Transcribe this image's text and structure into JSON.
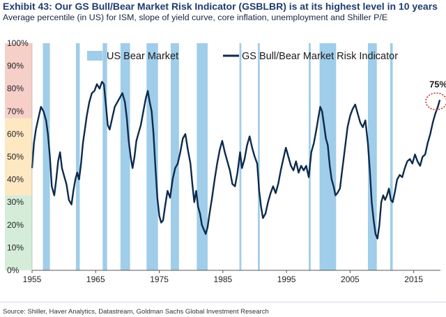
{
  "title": "Exhibit 43: Our GS Bull/Bear Market Risk Indicator (GSBLBR) is at its highest level in 10 years",
  "subtitle": "Average percentile (in US) for ISM, slope of yield curve, core inflation, unemployment and Shiller P/E",
  "source": "Source: Shiller, Haver Analytics, Datastream, Goldman Sachs Global Investment Research",
  "chart_data": {
    "type": "line",
    "title": "Exhibit 43: Our GS Bull/Bear Market Risk Indicator (GSBLBR) is at its highest level in 10 years",
    "subtitle": "Average percentile (in US) for ISM, slope of yield curve, core inflation, unemployment and Shiller P/E",
    "xlabel": "",
    "ylabel": "",
    "xlim": [
      1955,
      2019.2
    ],
    "ylim": [
      0,
      100
    ],
    "x_ticks": [
      "1955",
      "1965",
      "1975",
      "1985",
      "1995",
      "2005",
      "2015"
    ],
    "x_tick_values": [
      1955,
      1965,
      1975,
      1985,
      1995,
      2005,
      2015
    ],
    "y_ticks": [
      "0%",
      "10%",
      "20%",
      "30%",
      "40%",
      "50%",
      "60%",
      "70%",
      "80%",
      "90%",
      "100%"
    ],
    "y_tick_values": [
      0,
      10,
      20,
      30,
      40,
      50,
      60,
      70,
      80,
      90,
      100
    ],
    "grid": false,
    "legend_position": "top",
    "background_bands": [
      {
        "from": 0,
        "to": 33,
        "color": "#d5ecd9"
      },
      {
        "from": 33,
        "to": 67,
        "color": "#fde8c2"
      },
      {
        "from": 67,
        "to": 100,
        "color": "#f6cfc9"
      }
    ],
    "series": [
      {
        "name": "GS Bull/Bear Market Risk Indicator",
        "color": "#0d2a4d",
        "points": [
          [
            1955.0,
            45
          ],
          [
            1955.3,
            56
          ],
          [
            1955.6,
            62
          ],
          [
            1956.0,
            67
          ],
          [
            1956.4,
            72
          ],
          [
            1956.8,
            70
          ],
          [
            1957.2,
            66
          ],
          [
            1957.5,
            60
          ],
          [
            1957.8,
            50
          ],
          [
            1958.1,
            37
          ],
          [
            1958.5,
            33
          ],
          [
            1958.8,
            40
          ],
          [
            1959.1,
            48
          ],
          [
            1959.4,
            52
          ],
          [
            1959.7,
            45
          ],
          [
            1960.0,
            42
          ],
          [
            1960.4,
            38
          ],
          [
            1960.8,
            31
          ],
          [
            1961.2,
            29
          ],
          [
            1961.5,
            35
          ],
          [
            1961.8,
            40
          ],
          [
            1962.1,
            43
          ],
          [
            1962.4,
            40
          ],
          [
            1962.7,
            47
          ],
          [
            1963.0,
            56
          ],
          [
            1963.3,
            62
          ],
          [
            1963.6,
            68
          ],
          [
            1964.0,
            74
          ],
          [
            1964.4,
            78
          ],
          [
            1964.8,
            79
          ],
          [
            1965.2,
            82
          ],
          [
            1965.6,
            80
          ],
          [
            1966.0,
            83
          ],
          [
            1966.3,
            82
          ],
          [
            1966.6,
            73
          ],
          [
            1966.9,
            64
          ],
          [
            1967.2,
            62
          ],
          [
            1967.6,
            67
          ],
          [
            1968.0,
            72
          ],
          [
            1968.4,
            74
          ],
          [
            1968.8,
            76
          ],
          [
            1969.2,
            78
          ],
          [
            1969.6,
            74
          ],
          [
            1969.9,
            67
          ],
          [
            1970.2,
            57
          ],
          [
            1970.5,
            50
          ],
          [
            1970.8,
            45
          ],
          [
            1971.1,
            50
          ],
          [
            1971.4,
            57
          ],
          [
            1971.7,
            60
          ],
          [
            1972.1,
            64
          ],
          [
            1972.5,
            70
          ],
          [
            1972.9,
            76
          ],
          [
            1973.2,
            79
          ],
          [
            1973.5,
            74
          ],
          [
            1973.8,
            70
          ],
          [
            1974.1,
            60
          ],
          [
            1974.4,
            45
          ],
          [
            1974.7,
            32
          ],
          [
            1975.0,
            24
          ],
          [
            1975.3,
            21
          ],
          [
            1975.6,
            22
          ],
          [
            1975.9,
            28
          ],
          [
            1976.3,
            35
          ],
          [
            1976.7,
            32
          ],
          [
            1977.1,
            40
          ],
          [
            1977.5,
            45
          ],
          [
            1977.9,
            47
          ],
          [
            1978.3,
            52
          ],
          [
            1978.7,
            58
          ],
          [
            1979.1,
            60
          ],
          [
            1979.5,
            53
          ],
          [
            1979.9,
            47
          ],
          [
            1980.2,
            38
          ],
          [
            1980.5,
            30
          ],
          [
            1980.8,
            35
          ],
          [
            1981.1,
            28
          ],
          [
            1981.4,
            25
          ],
          [
            1981.7,
            20
          ],
          [
            1982.0,
            18
          ],
          [
            1982.3,
            16
          ],
          [
            1982.6,
            19
          ],
          [
            1982.9,
            25
          ],
          [
            1983.3,
            32
          ],
          [
            1983.7,
            40
          ],
          [
            1984.1,
            47
          ],
          [
            1984.5,
            53
          ],
          [
            1984.9,
            57
          ],
          [
            1985.3,
            52
          ],
          [
            1985.7,
            48
          ],
          [
            1986.1,
            44
          ],
          [
            1986.5,
            38
          ],
          [
            1986.9,
            37
          ],
          [
            1987.3,
            43
          ],
          [
            1987.7,
            52
          ],
          [
            1988.0,
            45
          ],
          [
            1988.4,
            49
          ],
          [
            1988.8,
            55
          ],
          [
            1989.2,
            59
          ],
          [
            1989.6,
            54
          ],
          [
            1990.0,
            50
          ],
          [
            1990.4,
            47
          ],
          [
            1990.7,
            35
          ],
          [
            1991.0,
            28
          ],
          [
            1991.3,
            23
          ],
          [
            1991.7,
            25
          ],
          [
            1992.1,
            30
          ],
          [
            1992.5,
            34
          ],
          [
            1992.9,
            37
          ],
          [
            1993.3,
            34
          ],
          [
            1993.7,
            38
          ],
          [
            1994.1,
            44
          ],
          [
            1994.5,
            49
          ],
          [
            1994.9,
            54
          ],
          [
            1995.3,
            50
          ],
          [
            1995.7,
            46
          ],
          [
            1996.1,
            44
          ],
          [
            1996.5,
            48
          ],
          [
            1996.9,
            43
          ],
          [
            1997.3,
            46
          ],
          [
            1997.7,
            44
          ],
          [
            1998.1,
            46
          ],
          [
            1998.5,
            41
          ],
          [
            1998.9,
            52
          ],
          [
            1999.3,
            56
          ],
          [
            1999.7,
            62
          ],
          [
            2000.0,
            67
          ],
          [
            2000.3,
            72
          ],
          [
            2000.6,
            70
          ],
          [
            2000.9,
            64
          ],
          [
            2001.2,
            58
          ],
          [
            2001.5,
            55
          ],
          [
            2001.8,
            46
          ],
          [
            2002.1,
            40
          ],
          [
            2002.4,
            37
          ],
          [
            2002.7,
            33
          ],
          [
            2003.0,
            34
          ],
          [
            2003.4,
            36
          ],
          [
            2003.8,
            45
          ],
          [
            2004.2,
            54
          ],
          [
            2004.6,
            63
          ],
          [
            2005.0,
            68
          ],
          [
            2005.4,
            71
          ],
          [
            2005.8,
            73
          ],
          [
            2006.2,
            69
          ],
          [
            2006.6,
            65
          ],
          [
            2007.0,
            63
          ],
          [
            2007.4,
            66
          ],
          [
            2007.8,
            56
          ],
          [
            2008.1,
            44
          ],
          [
            2008.4,
            30
          ],
          [
            2008.7,
            22
          ],
          [
            2009.0,
            16
          ],
          [
            2009.3,
            14
          ],
          [
            2009.6,
            20
          ],
          [
            2009.9,
            30
          ],
          [
            2010.2,
            33
          ],
          [
            2010.5,
            31
          ],
          [
            2010.8,
            33
          ],
          [
            2011.1,
            36
          ],
          [
            2011.4,
            31
          ],
          [
            2011.7,
            30
          ],
          [
            2012.0,
            34
          ],
          [
            2012.4,
            40
          ],
          [
            2012.8,
            42
          ],
          [
            2013.2,
            41
          ],
          [
            2013.6,
            45
          ],
          [
            2014.0,
            48
          ],
          [
            2014.4,
            49
          ],
          [
            2014.8,
            47
          ],
          [
            2015.2,
            51
          ],
          [
            2015.6,
            48
          ],
          [
            2016.0,
            46
          ],
          [
            2016.4,
            50
          ],
          [
            2016.8,
            51
          ],
          [
            2017.2,
            56
          ],
          [
            2017.6,
            60
          ],
          [
            2018.0,
            65
          ],
          [
            2018.4,
            69
          ],
          [
            2018.8,
            72
          ],
          [
            2019.1,
            75
          ]
        ]
      }
    ],
    "bear_markets": {
      "name": "US Bear Market",
      "color": "#9fcdea",
      "periods": [
        [
          1956.7,
          1957.8
        ],
        [
          1961.9,
          1962.5
        ],
        [
          1966.1,
          1966.8
        ],
        [
          1968.9,
          1970.4
        ],
        [
          1973.0,
          1974.8
        ],
        [
          1976.8,
          1978.1
        ],
        [
          1980.9,
          1982.6
        ],
        [
          1987.6,
          1987.9
        ],
        [
          1990.5,
          1990.8
        ],
        [
          1998.5,
          1998.8
        ],
        [
          2000.2,
          2002.8
        ],
        [
          2007.8,
          2009.2
        ],
        [
          2011.3,
          2011.7
        ]
      ]
    },
    "annotations": [
      {
        "text": "75%",
        "x": 2019.1,
        "y": 75
      }
    ]
  }
}
